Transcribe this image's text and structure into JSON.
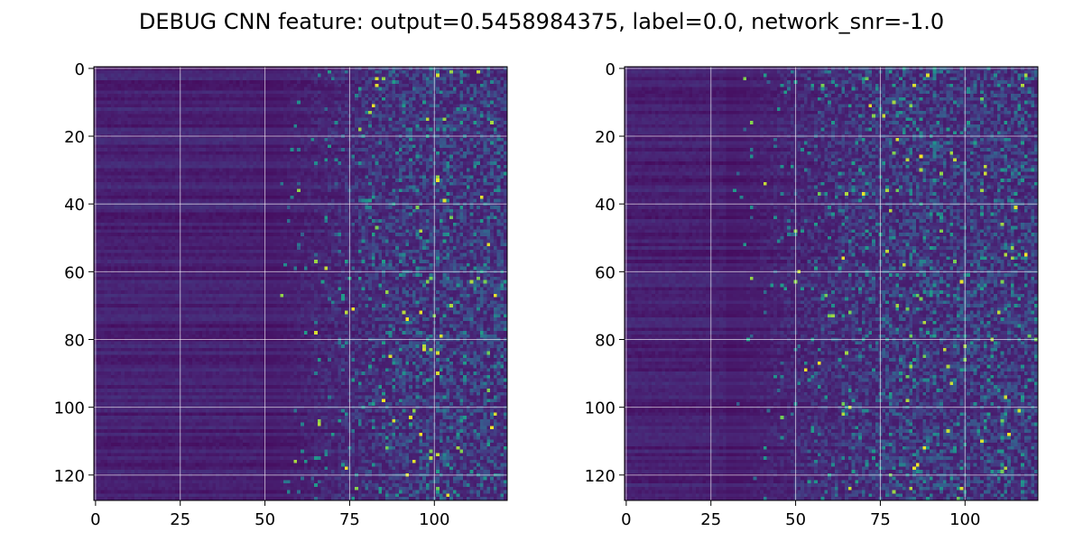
{
  "figure": {
    "title": "DEBUG CNN feature: output=0.5458984375, label=0.0, network_snr=-1.0"
  },
  "chart_data": [
    {
      "type": "heatmap",
      "colormap": "viridis",
      "rows": 128,
      "cols": 122,
      "xlim": [
        -0.5,
        121.5
      ],
      "ylim": [
        127.5,
        -0.5
      ],
      "xticks": [
        0,
        25,
        50,
        75,
        100
      ],
      "yticks": [
        0,
        20,
        40,
        60,
        80,
        100,
        120
      ],
      "grid": true,
      "values_note": "pseudo-random texture: dark low-valued columns 0-50, speckled higher values toward the right"
    },
    {
      "type": "heatmap",
      "colormap": "viridis",
      "rows": 128,
      "cols": 122,
      "xlim": [
        -0.5,
        121.5
      ],
      "ylim": [
        127.5,
        -0.5
      ],
      "xticks": [
        0,
        25,
        50,
        75,
        100
      ],
      "yticks": [
        0,
        20,
        40,
        60,
        80,
        100,
        120
      ],
      "grid": true,
      "values_note": "pseudo-random texture: dark low-valued columns 0-30, speckled higher values toward the right"
    }
  ],
  "colors": {
    "grid": "#ffffff",
    "background": "#ffffff",
    "text": "#000000"
  }
}
